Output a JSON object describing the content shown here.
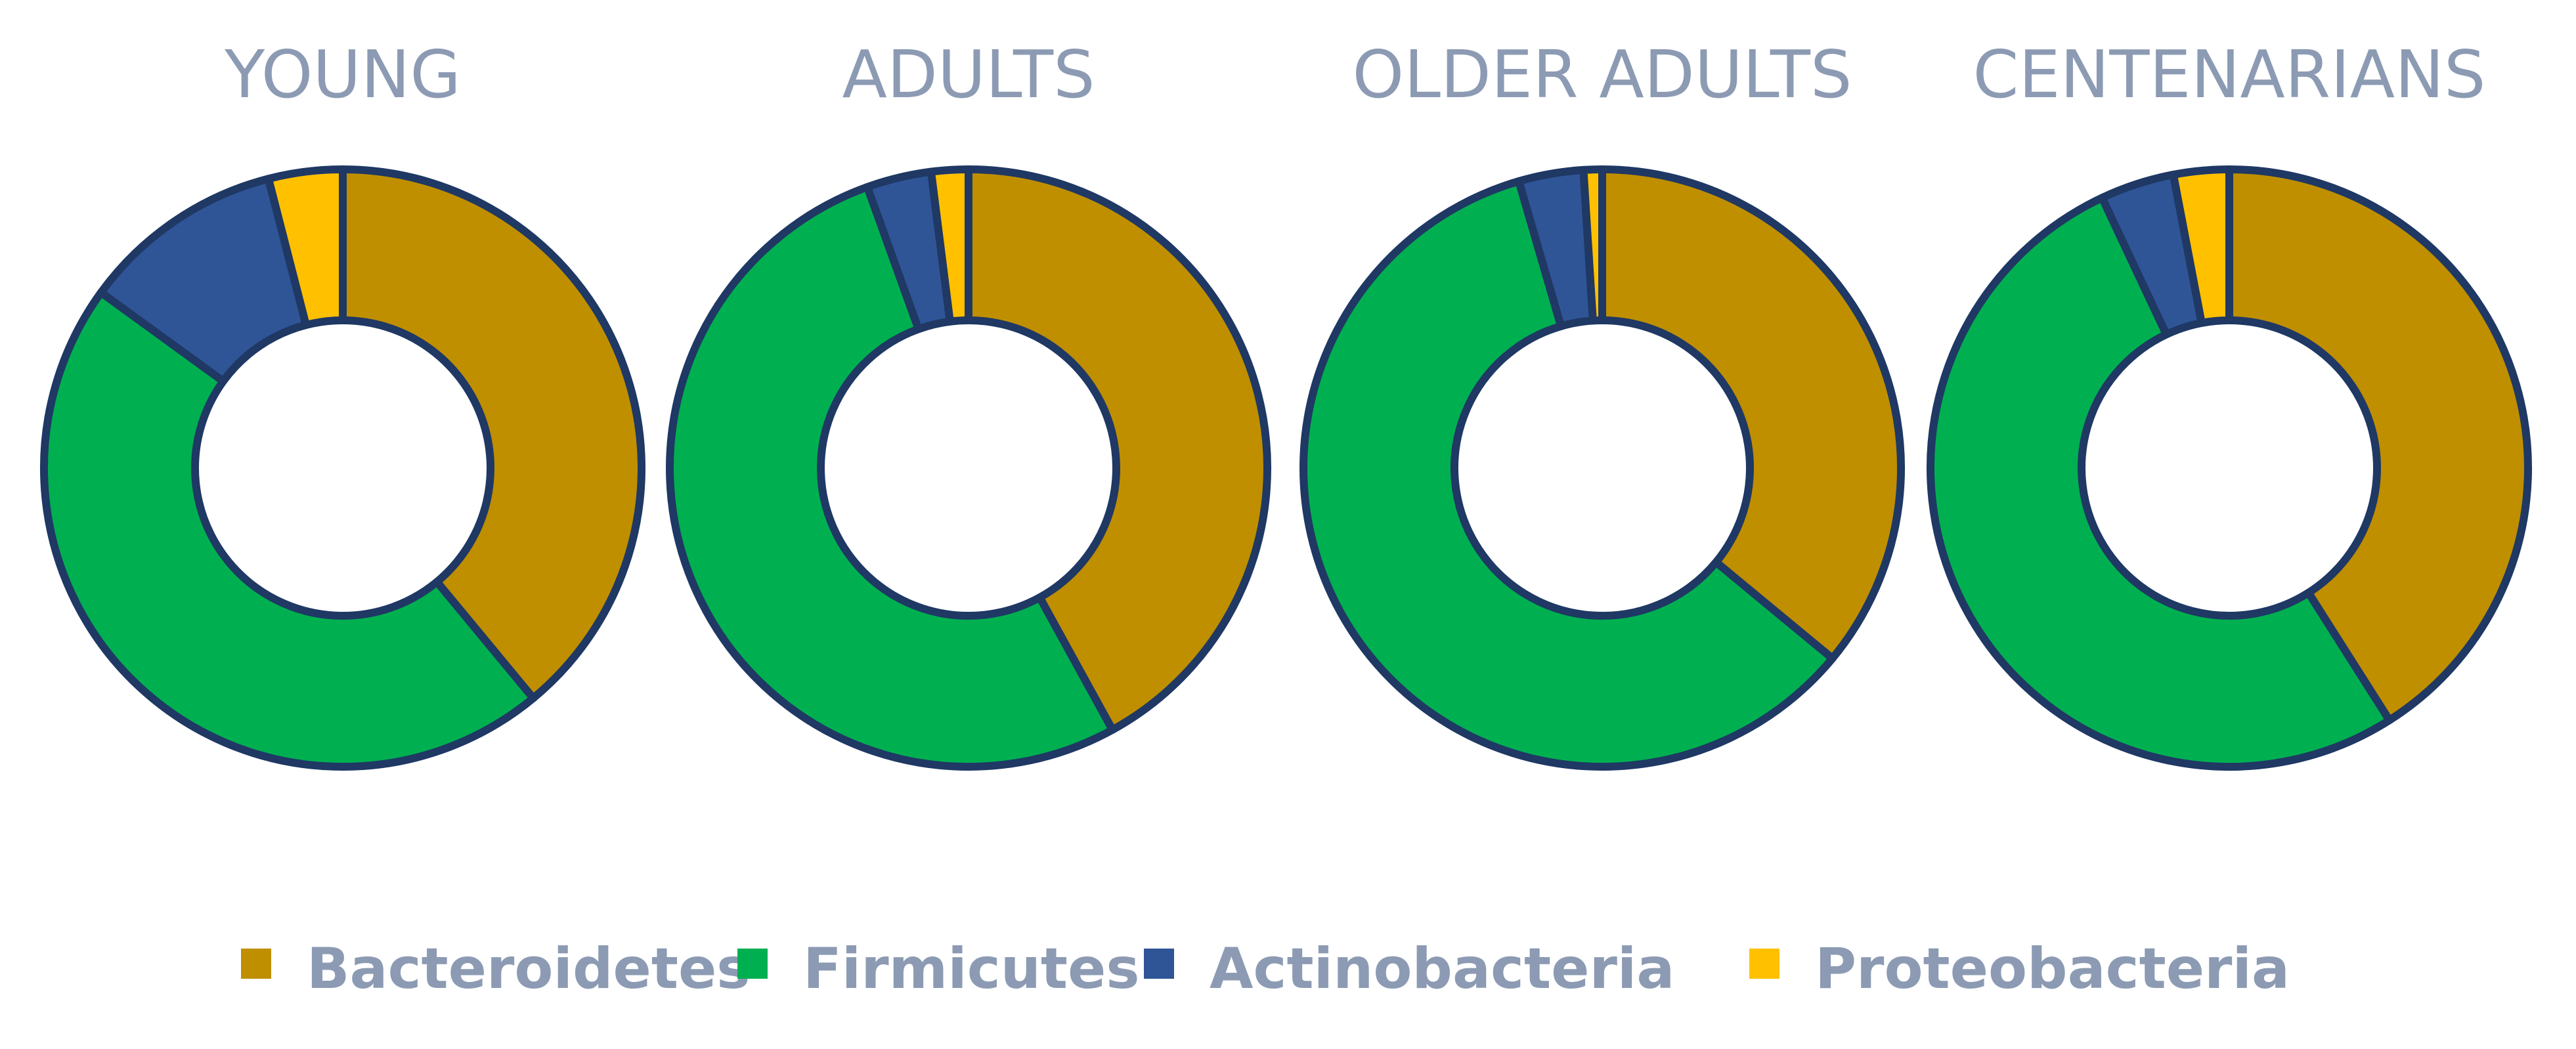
{
  "chart_data": {
    "type": "donut",
    "legend": {
      "position": "bottom",
      "items": [
        "Bacteroidetes",
        "Firmicutes",
        "Actinobacteria",
        "Proteobacteria"
      ]
    },
    "colors": {
      "Bacteroidetes": "#bf8f00",
      "Firmicutes": "#00b050",
      "Actinobacteria": "#2f5597",
      "Proteobacteria": "#ffc000",
      "outline": "#1f3864",
      "title": "#8c9bb3"
    },
    "charts": [
      {
        "title": "YOUNG",
        "values": [
          39,
          46,
          11,
          4
        ]
      },
      {
        "title": "ADULTS",
        "values": [
          42,
          52.5,
          3.5,
          2
        ]
      },
      {
        "title": "OLDER ADULTS",
        "values": [
          36,
          59.5,
          3.5,
          1
        ]
      },
      {
        "title": "CENTENARIANS",
        "values": [
          41,
          52,
          4,
          3
        ]
      }
    ]
  }
}
